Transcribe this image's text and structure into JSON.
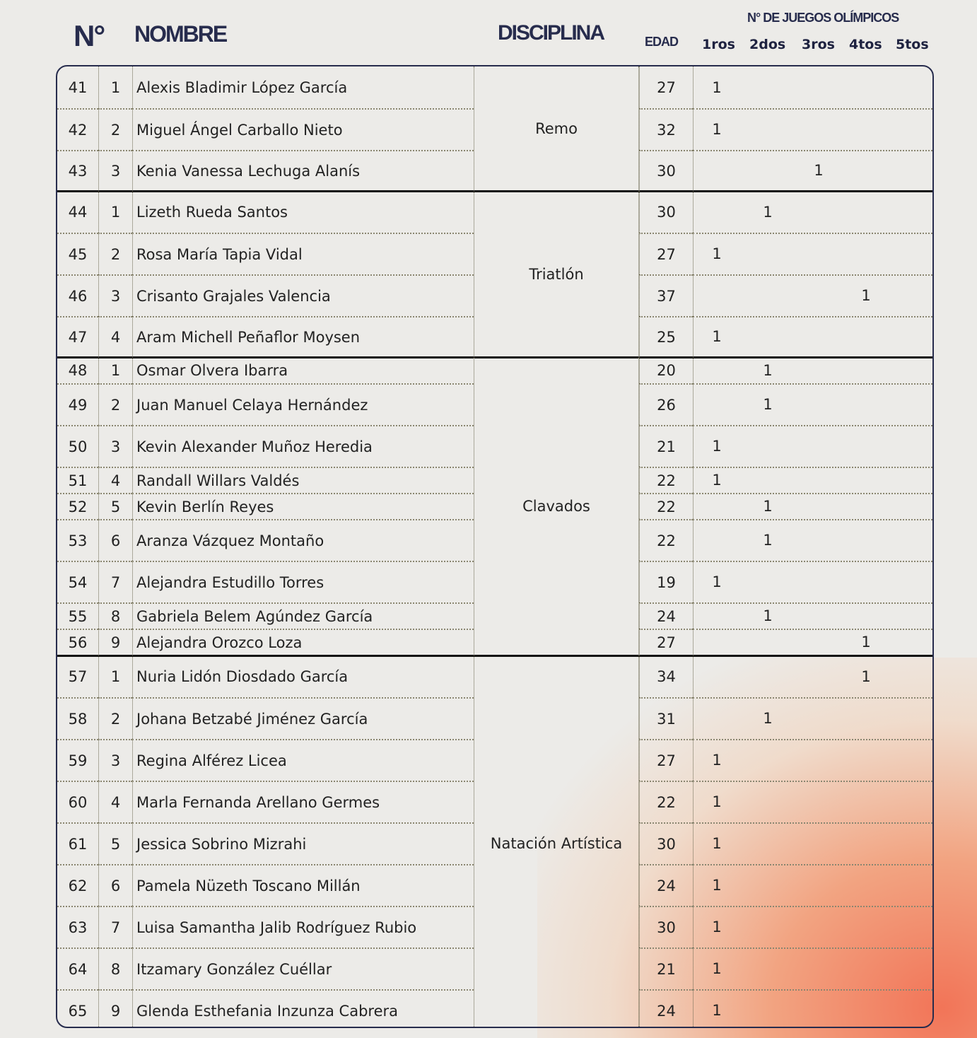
{
  "header": {
    "number": "N°",
    "name": "NOMBRE",
    "discipline": "DISCIPLINA",
    "age": "EDAD",
    "games_title": "N° DE JUEGOS OLÍMPICOS",
    "games_columns": [
      "1ros",
      "2dos",
      "3ros",
      "4tos",
      "5tos"
    ]
  },
  "colors": {
    "header_text": "#272c4d",
    "border": "#272c4d",
    "accent_gradient": "#f26e50"
  },
  "groups": [
    {
      "discipline": "Remo",
      "rows": [
        {
          "n": "41",
          "i": "1",
          "name": "Alexis Bladimir López García",
          "age": "27",
          "games": [
            "1",
            "",
            "",
            "",
            ""
          ]
        },
        {
          "n": "42",
          "i": "2",
          "name": "Miguel Ángel Carballo Nieto",
          "age": "32",
          "games": [
            "1",
            "",
            "",
            "",
            ""
          ]
        },
        {
          "n": "43",
          "i": "3",
          "name": "Kenia Vanessa Lechuga Alanís",
          "age": "30",
          "games": [
            "",
            "",
            "1",
            "",
            ""
          ]
        }
      ]
    },
    {
      "discipline": "Triatlón",
      "rows": [
        {
          "n": "44",
          "i": "1",
          "name": "Lizeth Rueda Santos",
          "age": "30",
          "games": [
            "",
            "1",
            "",
            "",
            ""
          ]
        },
        {
          "n": "45",
          "i": "2",
          "name": "Rosa María Tapia Vidal",
          "age": "27",
          "games": [
            "1",
            "",
            "",
            "",
            ""
          ]
        },
        {
          "n": "46",
          "i": "3",
          "name": "Crisanto Grajales Valencia",
          "age": "37",
          "games": [
            "",
            "",
            "",
            "1",
            ""
          ]
        },
        {
          "n": "47",
          "i": "4",
          "name": "Aram Michell Peñaflor Moysen",
          "age": "25",
          "games": [
            "1",
            "",
            "",
            "",
            ""
          ]
        }
      ]
    },
    {
      "discipline": "Clavados",
      "rows": [
        {
          "n": "48",
          "i": "1",
          "name": "Osmar Olvera Ibarra",
          "age": "20",
          "games": [
            "",
            "1",
            "",
            "",
            ""
          ]
        },
        {
          "n": "49",
          "i": "2",
          "name": "Juan Manuel Celaya Hernández",
          "age": "26",
          "games": [
            "",
            "1",
            "",
            "",
            ""
          ]
        },
        {
          "n": "50",
          "i": "3",
          "name": "Kevin Alexander Muñoz Heredia",
          "age": "21",
          "games": [
            "1",
            "",
            "",
            "",
            ""
          ]
        },
        {
          "n": "51",
          "i": "4",
          "name": "Randall Willars Valdés",
          "age": "22",
          "games": [
            "1",
            "",
            "",
            "",
            ""
          ]
        },
        {
          "n": "52",
          "i": "5",
          "name": "Kevin Berlín Reyes",
          "age": "22",
          "games": [
            "",
            "1",
            "",
            "",
            ""
          ]
        },
        {
          "n": "53",
          "i": "6",
          "name": "Aranza Vázquez Montaño",
          "age": "22",
          "games": [
            "",
            "1",
            "",
            "",
            ""
          ]
        },
        {
          "n": "54",
          "i": "7",
          "name": "Alejandra Estudillo Torres",
          "age": "19",
          "games": [
            "1",
            "",
            "",
            "",
            ""
          ]
        },
        {
          "n": "55",
          "i": "8",
          "name": "Gabriela Belem Agúndez García",
          "age": "24",
          "games": [
            "",
            "1",
            "",
            "",
            ""
          ]
        },
        {
          "n": "56",
          "i": "9",
          "name": "Alejandra Orozco Loza",
          "age": "27",
          "games": [
            "",
            "",
            "",
            "1",
            ""
          ]
        }
      ]
    },
    {
      "discipline": "Natación Artística",
      "rows": [
        {
          "n": "57",
          "i": "1",
          "name": "Nuria Lidón Diosdado García",
          "age": "34",
          "games": [
            "",
            "",
            "",
            "1",
            ""
          ]
        },
        {
          "n": "58",
          "i": "2",
          "name": "Johana Betzabé Jiménez García",
          "age": "31",
          "games": [
            "",
            "1",
            "",
            "",
            ""
          ]
        },
        {
          "n": "59",
          "i": "3",
          "name": "Regina Alférez Licea",
          "age": "27",
          "games": [
            "1",
            "",
            "",
            "",
            ""
          ]
        },
        {
          "n": "60",
          "i": "4",
          "name": "Marla Fernanda Arellano Germes",
          "age": "22",
          "games": [
            "1",
            "",
            "",
            "",
            ""
          ]
        },
        {
          "n": "61",
          "i": "5",
          "name": "Jessica Sobrino Mizrahi",
          "age": "30",
          "games": [
            "1",
            "",
            "",
            "",
            ""
          ]
        },
        {
          "n": "62",
          "i": "6",
          "name": "Pamela Nüzeth Toscano Millán",
          "age": "24",
          "games": [
            "1",
            "",
            "",
            "",
            ""
          ]
        },
        {
          "n": "63",
          "i": "7",
          "name": "Luisa Samantha Jalib Rodríguez Rubio",
          "age": "30",
          "games": [
            "1",
            "",
            "",
            "",
            ""
          ]
        },
        {
          "n": "64",
          "i": "8",
          "name": "Itzamary González Cuéllar",
          "age": "21",
          "games": [
            "1",
            "",
            "",
            "",
            ""
          ]
        },
        {
          "n": "65",
          "i": "9",
          "name": "Glenda Esthefania Inzunza Cabrera",
          "age": "24",
          "games": [
            "1",
            "",
            "",
            "",
            ""
          ]
        }
      ]
    }
  ]
}
